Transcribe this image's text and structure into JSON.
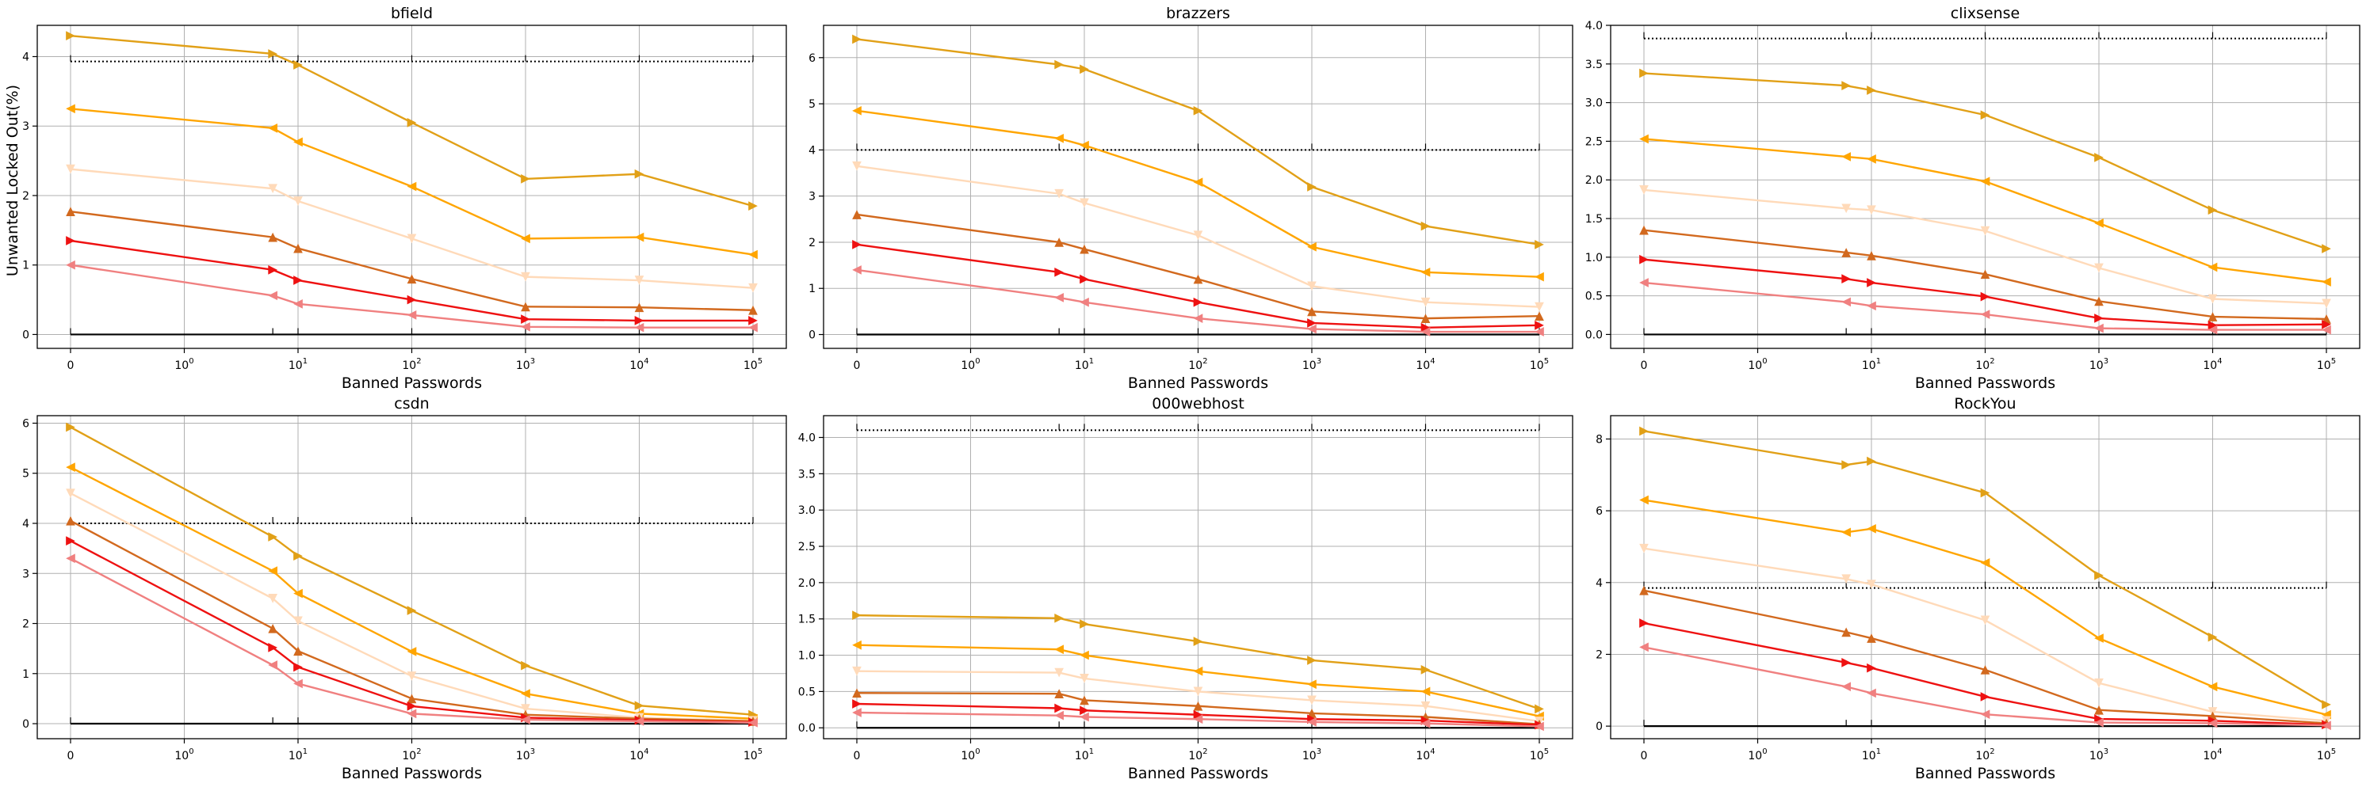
{
  "figure": {
    "ylabel": "Unwanted Locked Out(%)",
    "xlabel": "Banned Passwords"
  },
  "x_ticks": [
    {
      "v": 0,
      "base": "0",
      "exp": ""
    },
    {
      "v": 1,
      "base": "10",
      "exp": "0"
    },
    {
      "v": 10,
      "base": "10",
      "exp": "1"
    },
    {
      "v": 100,
      "base": "10",
      "exp": "2"
    },
    {
      "v": 1000,
      "base": "10",
      "exp": "3"
    },
    {
      "v": 10000,
      "base": "10",
      "exp": "4"
    },
    {
      "v": 100000,
      "base": "10",
      "exp": "5"
    }
  ],
  "x_points": [
    0,
    6,
    10,
    100,
    1000,
    10000,
    100000
  ],
  "series_styles": [
    {
      "color": "#e1a017",
      "marker": "triangle-right"
    },
    {
      "color": "#ffa500",
      "marker": "triangle-left"
    },
    {
      "color": "#ffdab9",
      "marker": "triangle-down"
    },
    {
      "color": "#d2691e",
      "marker": "triangle-up"
    },
    {
      "color": "#ee1111",
      "marker": "triangle-right"
    },
    {
      "color": "#f08080",
      "marker": "triangle-left"
    }
  ],
  "chart_data": [
    {
      "type": "line",
      "title": "bfield",
      "xscale": "symlog",
      "xlim": [
        0,
        100000
      ],
      "ylim": [
        -0.2,
        4.45
      ],
      "yticks": [
        0,
        1,
        2,
        3,
        4
      ],
      "ytick_labels": [
        "0",
        "1",
        "2",
        "3",
        "4"
      ],
      "dotted_line": 3.93,
      "series": [
        {
          "values": [
            4.3,
            4.04,
            3.88,
            3.05,
            2.24,
            2.31,
            1.85
          ]
        },
        {
          "values": [
            3.25,
            2.97,
            2.77,
            2.13,
            1.38,
            1.4,
            1.15
          ]
        },
        {
          "values": [
            2.38,
            2.1,
            1.92,
            1.38,
            0.83,
            0.78,
            0.67
          ]
        },
        {
          "values": [
            1.77,
            1.4,
            1.24,
            0.8,
            0.4,
            0.39,
            0.35
          ]
        },
        {
          "values": [
            1.35,
            0.93,
            0.78,
            0.5,
            0.22,
            0.2,
            0.2
          ]
        },
        {
          "values": [
            1.0,
            0.56,
            0.44,
            0.28,
            0.11,
            0.1,
            0.1
          ]
        }
      ]
    },
    {
      "type": "line",
      "title": "brazzers",
      "xscale": "symlog",
      "xlim": [
        0,
        100000
      ],
      "ylim": [
        -0.3,
        6.7
      ],
      "yticks": [
        0,
        1,
        2,
        3,
        4,
        5,
        6
      ],
      "ytick_labels": [
        "0",
        "1",
        "2",
        "3",
        "4",
        "5",
        "6"
      ],
      "dotted_line": 4.0,
      "series": [
        {
          "values": [
            6.4,
            5.85,
            5.75,
            4.85,
            3.2,
            2.35,
            1.95
          ]
        },
        {
          "values": [
            4.85,
            4.25,
            4.1,
            3.3,
            1.9,
            1.35,
            1.25
          ]
        },
        {
          "values": [
            3.65,
            3.05,
            2.85,
            2.15,
            1.05,
            0.7,
            0.6
          ]
        },
        {
          "values": [
            2.6,
            2.0,
            1.85,
            1.2,
            0.5,
            0.35,
            0.4
          ]
        },
        {
          "values": [
            1.95,
            1.35,
            1.2,
            0.7,
            0.25,
            0.15,
            0.2
          ]
        },
        {
          "values": [
            1.4,
            0.8,
            0.7,
            0.35,
            0.12,
            0.06,
            0.06
          ]
        }
      ]
    },
    {
      "type": "line",
      "title": "clixsense",
      "xscale": "symlog",
      "xlim": [
        0,
        100000
      ],
      "ylim": [
        -0.18,
        4.0
      ],
      "yticks": [
        0,
        0.5,
        1,
        1.5,
        2,
        2.5,
        3,
        3.5,
        4
      ],
      "ytick_labels": [
        "0.0",
        "0.5",
        "1.0",
        "1.5",
        "2.0",
        "2.5",
        "3.0",
        "3.5",
        "4.0"
      ],
      "dotted_line": 3.83,
      "series": [
        {
          "values": [
            3.38,
            3.22,
            3.16,
            2.84,
            2.29,
            1.61,
            1.11
          ]
        },
        {
          "values": [
            2.53,
            2.3,
            2.27,
            1.98,
            1.44,
            0.87,
            0.68
          ]
        },
        {
          "values": [
            1.87,
            1.63,
            1.61,
            1.34,
            0.86,
            0.46,
            0.4
          ]
        },
        {
          "values": [
            1.35,
            1.06,
            1.02,
            0.78,
            0.43,
            0.23,
            0.2
          ]
        },
        {
          "values": [
            0.97,
            0.72,
            0.67,
            0.49,
            0.21,
            0.12,
            0.13
          ]
        },
        {
          "values": [
            0.67,
            0.42,
            0.37,
            0.26,
            0.08,
            0.06,
            0.06
          ]
        }
      ]
    },
    {
      "type": "line",
      "title": "csdn",
      "xscale": "symlog",
      "xlim": [
        0,
        100000
      ],
      "ylim": [
        -0.3,
        6.15
      ],
      "yticks": [
        0,
        1,
        2,
        3,
        4,
        5,
        6
      ],
      "ytick_labels": [
        "0",
        "1",
        "2",
        "3",
        "4",
        "5",
        "6"
      ],
      "dotted_line": 4.0,
      "series": [
        {
          "values": [
            5.92,
            3.73,
            3.35,
            2.26,
            1.16,
            0.36,
            0.18
          ]
        },
        {
          "values": [
            5.12,
            3.05,
            2.6,
            1.44,
            0.6,
            0.2,
            0.1
          ]
        },
        {
          "values": [
            4.6,
            2.5,
            2.05,
            0.95,
            0.3,
            0.12,
            0.06
          ]
        },
        {
          "values": [
            4.05,
            1.9,
            1.45,
            0.5,
            0.18,
            0.1,
            0.05
          ]
        },
        {
          "values": [
            3.65,
            1.52,
            1.13,
            0.35,
            0.12,
            0.07,
            0.03
          ]
        },
        {
          "values": [
            3.3,
            1.17,
            0.8,
            0.2,
            0.08,
            0.05,
            0.02
          ]
        }
      ]
    },
    {
      "type": "line",
      "title": "000webhost",
      "xscale": "symlog",
      "xlim": [
        0,
        100000
      ],
      "ylim": [
        -0.15,
        4.3
      ],
      "yticks": [
        0,
        0.5,
        1,
        1.5,
        2,
        2.5,
        3,
        3.5,
        4
      ],
      "ytick_labels": [
        "0.0",
        "0.5",
        "1.0",
        "1.5",
        "2.0",
        "2.5",
        "3.0",
        "3.5",
        "4.0"
      ],
      "dotted_line": 4.1,
      "series": [
        {
          "values": [
            1.55,
            1.51,
            1.43,
            1.19,
            0.93,
            0.8,
            0.26
          ]
        },
        {
          "values": [
            1.14,
            1.08,
            1.0,
            0.78,
            0.6,
            0.5,
            0.16
          ]
        },
        {
          "values": [
            0.78,
            0.76,
            0.68,
            0.5,
            0.38,
            0.3,
            0.09
          ]
        },
        {
          "values": [
            0.48,
            0.47,
            0.38,
            0.3,
            0.2,
            0.15,
            0.05
          ]
        },
        {
          "values": [
            0.33,
            0.27,
            0.24,
            0.18,
            0.12,
            0.1,
            0.04
          ]
        },
        {
          "values": [
            0.21,
            0.17,
            0.15,
            0.12,
            0.08,
            0.06,
            0.02
          ]
        }
      ]
    },
    {
      "type": "line",
      "title": "RockYou",
      "xscale": "symlog",
      "xlim": [
        0,
        100000
      ],
      "ylim": [
        -0.35,
        8.65
      ],
      "yticks": [
        0,
        2,
        4,
        6,
        8
      ],
      "ytick_labels": [
        "0",
        "2",
        "4",
        "6",
        "8"
      ],
      "dotted_line": 3.85,
      "series": [
        {
          "values": [
            8.22,
            7.28,
            7.38,
            6.5,
            4.2,
            2.48,
            0.6
          ]
        },
        {
          "values": [
            6.3,
            5.4,
            5.5,
            4.55,
            2.45,
            1.1,
            0.32
          ]
        },
        {
          "values": [
            4.95,
            4.1,
            3.95,
            2.95,
            1.2,
            0.4,
            0.15
          ]
        },
        {
          "values": [
            3.78,
            2.62,
            2.45,
            1.57,
            0.45,
            0.28,
            0.08
          ]
        },
        {
          "values": [
            2.87,
            1.77,
            1.62,
            0.82,
            0.2,
            0.15,
            0.04
          ]
        },
        {
          "values": [
            2.2,
            1.1,
            0.92,
            0.33,
            0.1,
            0.08,
            0.02
          ]
        }
      ]
    }
  ]
}
